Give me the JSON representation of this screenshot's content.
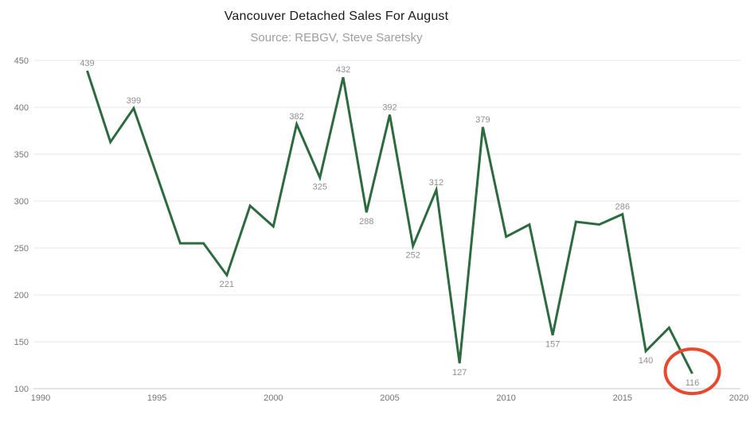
{
  "header": {
    "title": "Vancouver Detached Sales For August",
    "subtitle": "Source: REBGV, Steve Saretsky"
  },
  "chart_data": {
    "type": "line",
    "title": "Vancouver Detached Sales For August",
    "subtitle": "Source: REBGV, Steve Saretsky",
    "xlabel": "",
    "ylabel": "",
    "xlim": [
      1990,
      2020
    ],
    "ylim": [
      100,
      450
    ],
    "x_ticks": [
      "1990",
      "1995",
      "2000",
      "2005",
      "2010",
      "2015",
      "2020"
    ],
    "x_tick_values": [
      1990,
      1995,
      2000,
      2005,
      2010,
      2015,
      2020
    ],
    "y_ticks": [
      "450",
      "400",
      "350",
      "300",
      "250",
      "200",
      "150",
      "100"
    ],
    "y_tick_values": [
      450,
      400,
      350,
      300,
      250,
      200,
      150,
      100
    ],
    "grid": "horizontal",
    "legend": "none",
    "colors": {
      "line": "#2d6b3f",
      "grid": "#e7e7e7",
      "axis_line": "#c8c8c8",
      "tick_label": "#757575",
      "data_label": "#8f8f8f",
      "title": "#1a1a1a",
      "subtitle": "#9e9e9e",
      "annotation": "#e8492e"
    },
    "points": [
      {
        "year": 1992,
        "value": 439,
        "label": "439",
        "label_pos": "above"
      },
      {
        "year": 1993,
        "value": 363,
        "label": null,
        "label_pos": null
      },
      {
        "year": 1994,
        "value": 399,
        "label": "399",
        "label_pos": "above"
      },
      {
        "year": 1995,
        "value": 327,
        "label": null,
        "label_pos": null
      },
      {
        "year": 1996,
        "value": 255,
        "label": null,
        "label_pos": null
      },
      {
        "year": 1997,
        "value": 255,
        "label": null,
        "label_pos": null
      },
      {
        "year": 1998,
        "value": 221,
        "label": "221",
        "label_pos": "below"
      },
      {
        "year": 1999,
        "value": 295,
        "label": null,
        "label_pos": null
      },
      {
        "year": 2000,
        "value": 273,
        "label": null,
        "label_pos": null
      },
      {
        "year": 2001,
        "value": 382,
        "label": "382",
        "label_pos": "above"
      },
      {
        "year": 2002,
        "value": 325,
        "label": "325",
        "label_pos": "below"
      },
      {
        "year": 2003,
        "value": 432,
        "label": "432",
        "label_pos": "above"
      },
      {
        "year": 2004,
        "value": 288,
        "label": "288",
        "label_pos": "below"
      },
      {
        "year": 2005,
        "value": 392,
        "label": "392",
        "label_pos": "above"
      },
      {
        "year": 2006,
        "value": 252,
        "label": "252",
        "label_pos": "below"
      },
      {
        "year": 2007,
        "value": 312,
        "label": "312",
        "label_pos": "above"
      },
      {
        "year": 2008,
        "value": 127,
        "label": "127",
        "label_pos": "below"
      },
      {
        "year": 2009,
        "value": 379,
        "label": "379",
        "label_pos": "above"
      },
      {
        "year": 2010,
        "value": 262,
        "label": null,
        "label_pos": null
      },
      {
        "year": 2011,
        "value": 275,
        "label": null,
        "label_pos": null
      },
      {
        "year": 2012,
        "value": 157,
        "label": "157",
        "label_pos": "below"
      },
      {
        "year": 2013,
        "value": 278,
        "label": null,
        "label_pos": null
      },
      {
        "year": 2014,
        "value": 275,
        "label": null,
        "label_pos": null
      },
      {
        "year": 2015,
        "value": 286,
        "label": "286",
        "label_pos": "above"
      },
      {
        "year": 2016,
        "value": 140,
        "label": "140",
        "label_pos": "below"
      },
      {
        "year": 2017,
        "value": 165,
        "label": null,
        "label_pos": null
      },
      {
        "year": 2018,
        "value": 116,
        "label": "116",
        "label_pos": "below"
      }
    ],
    "annotation": {
      "shape": "ellipse",
      "year": 2018,
      "value": 116,
      "color": "#e8492e"
    }
  }
}
